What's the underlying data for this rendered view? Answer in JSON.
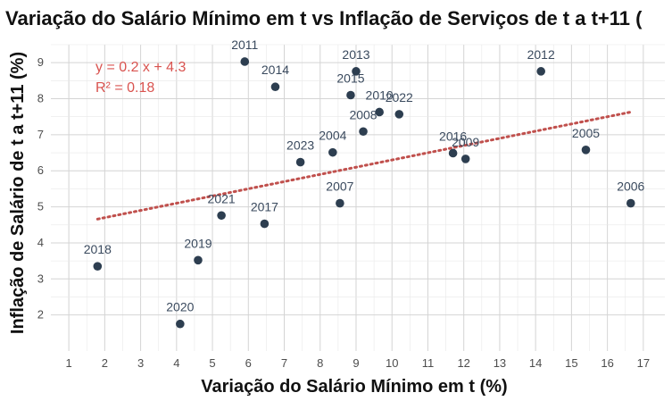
{
  "chart_data": {
    "type": "scatter",
    "title": "Variação do Salário Mínimo em t vs Inflação de Serviços de t a t+11 (",
    "xlabel": "Variação do Salário Mínimo em t (%)",
    "ylabel": "Inflação de Salário de t a t+11 (%)",
    "xlim": [
      0.5,
      17.6
    ],
    "ylim": [
      1.0,
      9.5
    ],
    "x_ticks": [
      1,
      2,
      3,
      4,
      5,
      6,
      7,
      8,
      9,
      10,
      11,
      12,
      13,
      14,
      15,
      16,
      17
    ],
    "y_ticks": [
      2,
      3,
      4,
      5,
      6,
      7,
      8,
      9
    ],
    "grid": true,
    "points": [
      {
        "label": "2018",
        "x": 1.8,
        "y": 3.35
      },
      {
        "label": "2020",
        "x": 4.1,
        "y": 1.75
      },
      {
        "label": "2019",
        "x": 4.6,
        "y": 3.52
      },
      {
        "label": "2021",
        "x": 5.25,
        "y": 4.76
      },
      {
        "label": "2011",
        "x": 5.9,
        "y": 9.03
      },
      {
        "label": "2017",
        "x": 6.45,
        "y": 4.53
      },
      {
        "label": "2014",
        "x": 6.75,
        "y": 8.33
      },
      {
        "label": "2023",
        "x": 7.45,
        "y": 6.24
      },
      {
        "label": "2004",
        "x": 8.35,
        "y": 6.51
      },
      {
        "label": "2007",
        "x": 8.55,
        "y": 5.1
      },
      {
        "label": "2015",
        "x": 8.85,
        "y": 8.1
      },
      {
        "label": "2013",
        "x": 9.0,
        "y": 8.76
      },
      {
        "label": "2008",
        "x": 9.2,
        "y": 7.09
      },
      {
        "label": "2010",
        "x": 9.65,
        "y": 7.63
      },
      {
        "label": "2022",
        "x": 10.2,
        "y": 7.57
      },
      {
        "label": "2016",
        "x": 11.7,
        "y": 6.49
      },
      {
        "label": "2009",
        "x": 12.05,
        "y": 6.33
      },
      {
        "label": "2012",
        "x": 14.15,
        "y": 8.76
      },
      {
        "label": "2005",
        "x": 15.4,
        "y": 6.58
      },
      {
        "label": "2006",
        "x": 16.65,
        "y": 5.1
      }
    ],
    "trendline": {
      "slope": 0.2,
      "intercept": 4.3,
      "x_range": [
        1.8,
        16.7
      ],
      "color": "#c0504d",
      "style": "dotted"
    },
    "annotations": [
      "y = 0.2 x + 4.3",
      "R² = 0.18"
    ],
    "colors": {
      "point": "#2d3e50",
      "trend": "#c0504d",
      "annotation": "#d9534f",
      "grid": "#d4d4d4"
    }
  }
}
